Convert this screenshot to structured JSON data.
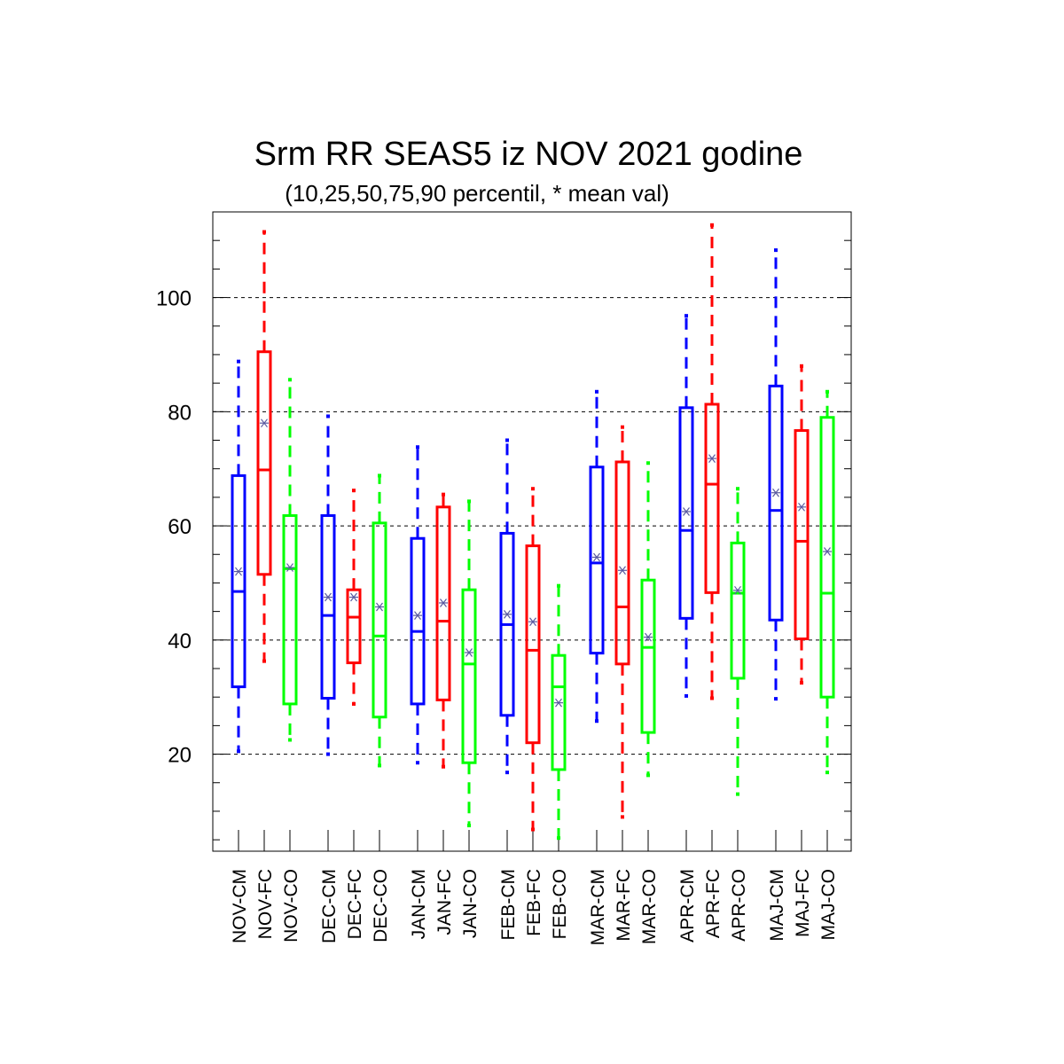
{
  "chart_data": {
    "type": "box",
    "title": "Srm RR SEAS5 iz NOV 2021 godine",
    "subtitle": "(10,25,50,75,90 percentil, * mean val)",
    "xlabel": "",
    "ylabel": "",
    "ylim": [
      3,
      115
    ],
    "yticks": [
      20,
      40,
      60,
      80,
      100
    ],
    "grid": "horizontal dashed",
    "colors": {
      "CM": "#0000ff",
      "FC": "#ff0000",
      "CO": "#00ff00",
      "mean_marker": "#5a5aa0"
    },
    "categories": [
      "NOV-CM",
      "NOV-FC",
      "NOV-CO",
      "DEC-CM",
      "DEC-FC",
      "DEC-CO",
      "JAN-CM",
      "JAN-FC",
      "JAN-CO",
      "FEB-CM",
      "FEB-FC",
      "FEB-CO",
      "MAR-CM",
      "MAR-FC",
      "MAR-CO",
      "APR-CM",
      "APR-FC",
      "APR-CO",
      "MAJ-CM",
      "MAJ-FC",
      "MAJ-CO"
    ],
    "boxes": [
      {
        "label": "NOV-CM",
        "p10": 20.5,
        "p25": 31.8,
        "p50": 48.5,
        "p75": 68.8,
        "p90": 88.8,
        "mean": 52.0
      },
      {
        "label": "NOV-FC",
        "p10": 36.3,
        "p25": 51.5,
        "p50": 69.8,
        "p75": 90.5,
        "p90": 111.5,
        "mean": 78.0
      },
      {
        "label": "NOV-CO",
        "p10": 22.5,
        "p25": 28.8,
        "p50": 52.5,
        "p75": 61.8,
        "p90": 85.6,
        "mean": 52.7
      },
      {
        "label": "DEC-CM",
        "p10": 20.0,
        "p25": 29.8,
        "p50": 44.3,
        "p75": 61.8,
        "p90": 79.2,
        "mean": 47.5
      },
      {
        "label": "DEC-FC",
        "p10": 28.8,
        "p25": 36.0,
        "p50": 44.0,
        "p75": 48.8,
        "p90": 66.2,
        "mean": 47.5
      },
      {
        "label": "DEC-CO",
        "p10": 18.0,
        "p25": 26.5,
        "p50": 40.7,
        "p75": 60.5,
        "p90": 68.8,
        "mean": 45.8
      },
      {
        "label": "JAN-CM",
        "p10": 18.5,
        "p25": 28.8,
        "p50": 41.5,
        "p75": 57.8,
        "p90": 73.8,
        "mean": 44.3
      },
      {
        "label": "JAN-FC",
        "p10": 17.8,
        "p25": 29.5,
        "p50": 43.3,
        "p75": 63.3,
        "p90": 65.5,
        "mean": 46.5
      },
      {
        "label": "JAN-CO",
        "p10": 7.5,
        "p25": 18.5,
        "p50": 35.8,
        "p75": 48.8,
        "p90": 64.3,
        "mean": 37.8
      },
      {
        "label": "FEB-CM",
        "p10": 16.8,
        "p25": 26.8,
        "p50": 42.7,
        "p75": 58.7,
        "p90": 75.0,
        "mean": 44.5
      },
      {
        "label": "FEB-FC",
        "p10": 6.8,
        "p25": 22.0,
        "p50": 38.2,
        "p75": 56.5,
        "p90": 66.5,
        "mean": 43.2
      },
      {
        "label": "FEB-CO",
        "p10": 5.3,
        "p25": 17.3,
        "p50": 31.8,
        "p75": 37.3,
        "p90": 49.5,
        "mean": 29.0
      },
      {
        "label": "MAR-CM",
        "p10": 25.8,
        "p25": 37.7,
        "p50": 53.5,
        "p75": 70.3,
        "p90": 83.5,
        "mean": 54.5
      },
      {
        "label": "MAR-FC",
        "p10": 9.0,
        "p25": 35.8,
        "p50": 45.8,
        "p75": 71.2,
        "p90": 77.3,
        "mean": 52.2
      },
      {
        "label": "MAR-CO",
        "p10": 16.3,
        "p25": 23.8,
        "p50": 38.7,
        "p75": 50.5,
        "p90": 71.0,
        "mean": 40.5
      },
      {
        "label": "APR-CM",
        "p10": 30.2,
        "p25": 43.8,
        "p50": 59.2,
        "p75": 80.7,
        "p90": 96.8,
        "mean": 62.5
      },
      {
        "label": "APR-FC",
        "p10": 29.8,
        "p25": 48.3,
        "p50": 67.3,
        "p75": 81.3,
        "p90": 112.7,
        "mean": 71.8
      },
      {
        "label": "APR-CO",
        "p10": 13.0,
        "p25": 33.3,
        "p50": 48.2,
        "p75": 57.0,
        "p90": 66.5,
        "mean": 48.7
      },
      {
        "label": "MAJ-CM",
        "p10": 29.7,
        "p25": 43.5,
        "p50": 62.7,
        "p75": 84.5,
        "p90": 108.3,
        "mean": 65.8
      },
      {
        "label": "MAJ-FC",
        "p10": 32.5,
        "p25": 40.2,
        "p50": 57.3,
        "p75": 76.7,
        "p90": 88.0,
        "mean": 63.3
      },
      {
        "label": "MAJ-CO",
        "p10": 16.8,
        "p25": 30.0,
        "p50": 48.2,
        "p75": 79.0,
        "p90": 83.5,
        "mean": 55.5
      }
    ]
  }
}
